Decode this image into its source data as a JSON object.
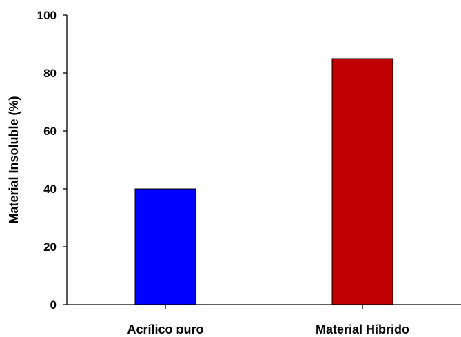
{
  "chart_data": {
    "type": "bar",
    "title": "",
    "xlabel": "",
    "ylabel": "Material Insoluble (%)",
    "categories": [
      "Acrílico puro",
      "Material Híbrido"
    ],
    "values": [
      40,
      85
    ],
    "colors": [
      "#0000ff",
      "#c00000"
    ],
    "ylim": [
      0,
      100
    ],
    "yticks": [
      0,
      20,
      40,
      60,
      80,
      100
    ],
    "ytick_labels": [
      "0",
      "20",
      "40",
      "60",
      "80",
      "100"
    ],
    "grid": false,
    "legend": "none"
  }
}
